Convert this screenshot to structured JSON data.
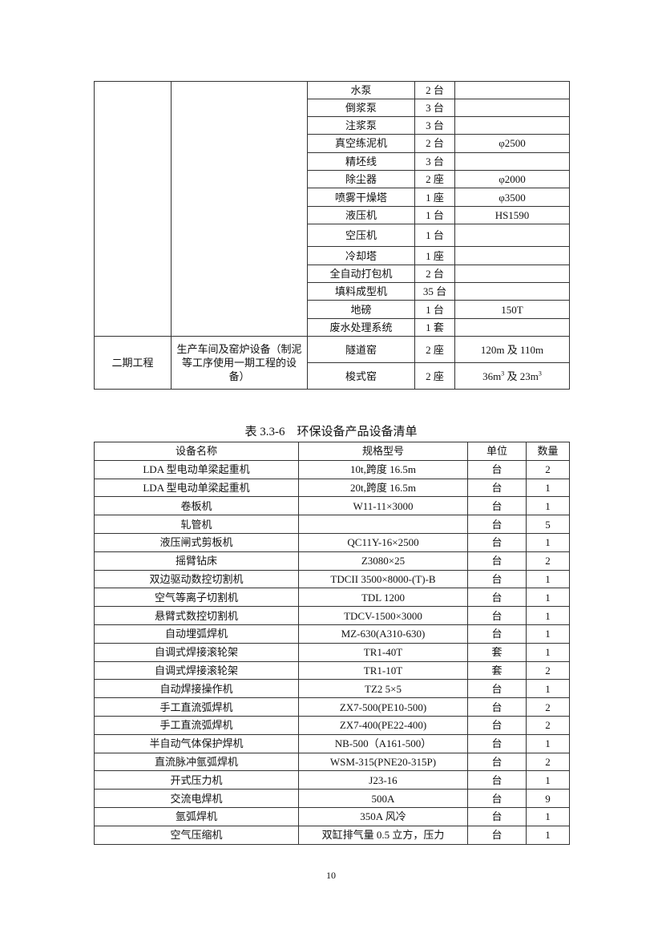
{
  "table1": {
    "rows": [
      {
        "name": "水泵",
        "qty": "2 台",
        "spec": ""
      },
      {
        "name": "倒浆泵",
        "qty": "3 台",
        "spec": ""
      },
      {
        "name": "注浆泵",
        "qty": "3 台",
        "spec": ""
      },
      {
        "name": "真空练泥机",
        "qty": "2 台",
        "spec": "φ2500"
      },
      {
        "name": "精坯线",
        "qty": "3 台",
        "spec": ""
      },
      {
        "name": "除尘器",
        "qty": "2 座",
        "spec": "φ2000"
      },
      {
        "name": "喷雾干燥塔",
        "qty": "1 座",
        "spec": "φ3500"
      },
      {
        "name": "液压机",
        "qty": "1 台",
        "spec": "HS1590"
      },
      {
        "name": "空压机",
        "qty": "1 台",
        "spec": ""
      },
      {
        "name": "冷却塔",
        "qty": "1 座",
        "spec": ""
      },
      {
        "name": "全自动打包机",
        "qty": "2 台",
        "spec": ""
      },
      {
        "name": "填料成型机",
        "qty": "35 台",
        "spec": ""
      },
      {
        "name": "地磅",
        "qty": "1 台",
        "spec": "150T"
      },
      {
        "name": "废水处理系统",
        "qty": "1 套",
        "spec": ""
      }
    ],
    "phase2": {
      "phase": "二期工程",
      "category": "生产车间及窑炉设备（制泥等工序使用一期工程的设备）",
      "rows": [
        {
          "name": "隧道窑",
          "qty": "2 座",
          "spec": "120m 及 110m"
        },
        {
          "name": "梭式窑",
          "qty": "2 座",
          "spec_a": "36m",
          "sup_a": "3",
          "spec_mid": " 及 23m",
          "sup_b": "3"
        }
      ]
    }
  },
  "table2": {
    "caption": "表 3.3-6　环保设备产品设备清单",
    "headers": [
      "设备名称",
      "规格型号",
      "单位",
      "数量"
    ],
    "rows": [
      [
        "LDA 型电动单梁起重机",
        "10t,跨度 16.5m",
        "台",
        "2"
      ],
      [
        "LDA 型电动单梁起重机",
        "20t,跨度 16.5m",
        "台",
        "1"
      ],
      [
        "卷板机",
        "W11-11×3000",
        "台",
        "1"
      ],
      [
        "轧管机",
        "",
        "台",
        "5"
      ],
      [
        "液压闸式剪板机",
        "QC11Y-16×2500",
        "台",
        "1"
      ],
      [
        "摇臂钻床",
        "Z3080×25",
        "台",
        "2"
      ],
      [
        "双边驱动数控切割机",
        "TDCII 3500×8000-(T)-B",
        "台",
        "1"
      ],
      [
        "空气等离子切割机",
        "TDL 1200",
        "台",
        "1"
      ],
      [
        "悬臂式数控切割机",
        "TDCV-1500×3000",
        "台",
        "1"
      ],
      [
        "自动埋弧焊机",
        "MZ-630(A310-630)",
        "台",
        "1"
      ],
      [
        "自调式焊接滚轮架",
        "TR1-40T",
        "套",
        "1"
      ],
      [
        "自调式焊接滚轮架",
        "TR1-10T",
        "套",
        "2"
      ],
      [
        "自动焊接操作机",
        "TZ2 5×5",
        "台",
        "1"
      ],
      [
        "手工直流弧焊机",
        "ZX7-500(PE10-500)",
        "台",
        "2"
      ],
      [
        "手工直流弧焊机",
        "ZX7-400(PE22-400)",
        "台",
        "2"
      ],
      [
        "半自动气体保护焊机",
        "NB-500（A161-500）",
        "台",
        "1"
      ],
      [
        "直流脉冲氩弧焊机",
        "WSM-315(PNE20-315P)",
        "台",
        "2"
      ],
      [
        "开式压力机",
        "J23-16",
        "台",
        "1"
      ],
      [
        "交流电焊机",
        "500A",
        "台",
        "9"
      ],
      [
        "氩弧焊机",
        "350A 风冷",
        "台",
        "1"
      ],
      [
        "空气压缩机",
        "双缸排气量 0.5 立方，压力",
        "台",
        "1"
      ]
    ]
  },
  "page_number": "10"
}
